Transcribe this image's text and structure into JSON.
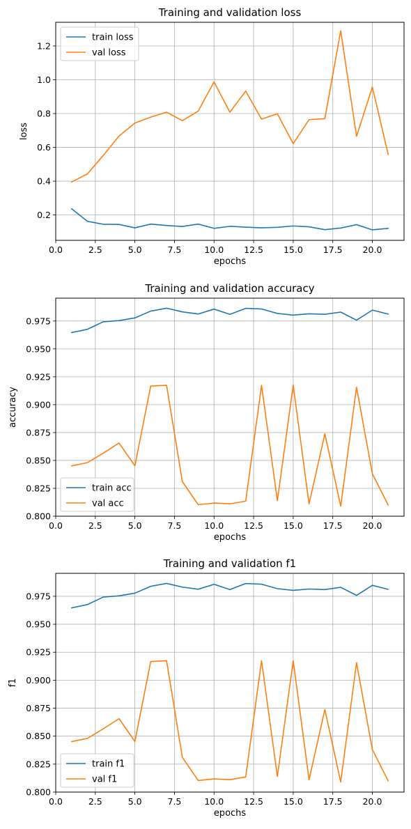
{
  "chart_data": [
    {
      "type": "line",
      "title": "Training and validation loss",
      "xlabel": "epochs",
      "ylabel": "loss",
      "xlim": [
        0.0,
        22.0
      ],
      "ylim": [
        0.05,
        1.34
      ],
      "xticks": [
        0.0,
        2.5,
        5.0,
        7.5,
        10.0,
        12.5,
        15.0,
        17.5,
        20.0
      ],
      "xticklabels": [
        "0.0",
        "2.5",
        "5.0",
        "7.5",
        "10.0",
        "12.5",
        "15.0",
        "17.5",
        "20.0"
      ],
      "yticks": [
        0.2,
        0.4,
        0.6,
        0.8,
        1.0,
        1.2
      ],
      "yticklabels": [
        "0.2",
        "0.4",
        "0.6",
        "0.8",
        "1.0",
        "1.2"
      ],
      "grid": true,
      "legend_position": "top-left",
      "x": [
        1,
        2,
        3,
        4,
        5,
        6,
        7,
        8,
        9,
        10,
        11,
        12,
        13,
        14,
        15,
        16,
        17,
        18,
        19,
        20,
        21
      ],
      "series": [
        {
          "name": "train loss",
          "color": "#1f77b4",
          "values": [
            0.237,
            0.163,
            0.145,
            0.144,
            0.124,
            0.146,
            0.138,
            0.132,
            0.146,
            0.121,
            0.133,
            0.128,
            0.124,
            0.127,
            0.135,
            0.13,
            0.113,
            0.123,
            0.143,
            0.112,
            0.121
          ]
        },
        {
          "name": "val loss",
          "color": "#ff7f0e",
          "values": [
            0.395,
            0.443,
            0.552,
            0.667,
            0.744,
            0.779,
            0.808,
            0.758,
            0.815,
            0.987,
            0.808,
            0.933,
            0.767,
            0.799,
            0.622,
            0.764,
            0.77,
            1.29,
            0.665,
            0.957,
            0.557
          ]
        }
      ]
    },
    {
      "type": "line",
      "title": "Training and validation accuracy",
      "xlabel": "epochs",
      "ylabel": "accuracy",
      "xlim": [
        0.0,
        22.0
      ],
      "ylim": [
        0.8,
        0.9955
      ],
      "xticks": [
        0.0,
        2.5,
        5.0,
        7.5,
        10.0,
        12.5,
        15.0,
        17.5,
        20.0
      ],
      "xticklabels": [
        "0.0",
        "2.5",
        "5.0",
        "7.5",
        "10.0",
        "12.5",
        "15.0",
        "17.5",
        "20.0"
      ],
      "yticks": [
        0.8,
        0.825,
        0.85,
        0.875,
        0.9,
        0.925,
        0.95,
        0.975
      ],
      "yticklabels": [
        "0.800",
        "0.825",
        "0.850",
        "0.875",
        "0.900",
        "0.925",
        "0.950",
        "0.975"
      ],
      "grid": true,
      "legend_position": "bottom-left",
      "x": [
        1,
        2,
        3,
        4,
        5,
        6,
        7,
        8,
        9,
        10,
        11,
        12,
        13,
        14,
        15,
        16,
        17,
        18,
        19,
        20,
        21
      ],
      "series": [
        {
          "name": "train acc",
          "color": "#1f77b4",
          "values": [
            0.9646,
            0.9676,
            0.9743,
            0.9754,
            0.9778,
            0.9839,
            0.9865,
            0.9832,
            0.9813,
            0.9857,
            0.981,
            0.9864,
            0.9858,
            0.9818,
            0.9803,
            0.9815,
            0.981,
            0.983,
            0.9758,
            0.9848,
            0.9812
          ]
        },
        {
          "name": "val acc",
          "color": "#ff7f0e",
          "values": [
            0.8451,
            0.848,
            0.8565,
            0.8656,
            0.8452,
            0.9167,
            0.9174,
            0.831,
            0.8103,
            0.8118,
            0.8111,
            0.8135,
            0.9174,
            0.814,
            0.9174,
            0.811,
            0.8738,
            0.809,
            0.9156,
            0.838,
            0.81
          ]
        }
      ]
    },
    {
      "type": "line",
      "title": "Training and validation f1",
      "xlabel": "epochs",
      "ylabel": "f1",
      "xlim": [
        0.0,
        22.0
      ],
      "ylim": [
        0.8,
        0.9955
      ],
      "xticks": [
        0.0,
        2.5,
        5.0,
        7.5,
        10.0,
        12.5,
        15.0,
        17.5,
        20.0
      ],
      "xticklabels": [
        "0.0",
        "2.5",
        "5.0",
        "7.5",
        "10.0",
        "12.5",
        "15.0",
        "17.5",
        "20.0"
      ],
      "yticks": [
        0.8,
        0.825,
        0.85,
        0.875,
        0.9,
        0.925,
        0.95,
        0.975
      ],
      "yticklabels": [
        "0.800",
        "0.825",
        "0.850",
        "0.875",
        "0.900",
        "0.925",
        "0.950",
        "0.975"
      ],
      "grid": true,
      "legend_position": "bottom-left",
      "x": [
        1,
        2,
        3,
        4,
        5,
        6,
        7,
        8,
        9,
        10,
        11,
        12,
        13,
        14,
        15,
        16,
        17,
        18,
        19,
        20,
        21
      ],
      "series": [
        {
          "name": "train f1",
          "color": "#1f77b4",
          "values": [
            0.9646,
            0.9676,
            0.9743,
            0.9754,
            0.9778,
            0.9839,
            0.9865,
            0.9832,
            0.9813,
            0.9857,
            0.981,
            0.9864,
            0.9858,
            0.9818,
            0.9803,
            0.9815,
            0.981,
            0.983,
            0.9758,
            0.9848,
            0.9812
          ]
        },
        {
          "name": "val f1",
          "color": "#ff7f0e",
          "values": [
            0.8451,
            0.848,
            0.8565,
            0.8656,
            0.8452,
            0.9167,
            0.9174,
            0.831,
            0.8103,
            0.8118,
            0.8111,
            0.8135,
            0.9174,
            0.814,
            0.9174,
            0.811,
            0.8738,
            0.809,
            0.9156,
            0.838,
            0.81
          ]
        }
      ]
    }
  ]
}
